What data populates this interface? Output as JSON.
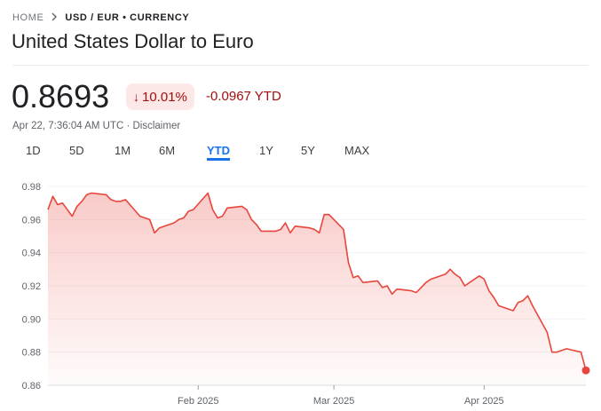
{
  "breadcrumb": {
    "home": "HOME",
    "separator_icon": "chevron-right-icon",
    "pair": "USD / EUR • CURRENCY"
  },
  "title": "United States Dollar to Euro",
  "quote": {
    "price": "0.8693",
    "change_pct": "10.01%",
    "change_arrow_icon": "arrow-down-icon",
    "change_abs": "-0.0967 YTD",
    "timestamp": "Apr 22, 7:36:04 AM UTC · Disclaimer"
  },
  "colors": {
    "negative": "#a50e0e",
    "negative_bg": "#fce8e6",
    "line": "#e8453c",
    "accent": "#1a73e8"
  },
  "tabs": [
    {
      "label": "1D",
      "active": false
    },
    {
      "label": "5D",
      "active": false
    },
    {
      "label": "1M",
      "active": false
    },
    {
      "label": "6M",
      "active": false
    },
    {
      "label": "YTD",
      "active": true
    },
    {
      "label": "1Y",
      "active": false
    },
    {
      "label": "5Y",
      "active": false
    },
    {
      "label": "MAX",
      "active": false
    }
  ],
  "chart_data": {
    "type": "area",
    "ylim": [
      0.86,
      0.98
    ],
    "yticks": [
      "0.98",
      "0.96",
      "0.94",
      "0.92",
      "0.90",
      "0.88",
      "0.86"
    ],
    "xticks": [
      {
        "label": "Feb 2025",
        "date": "2025-02-01"
      },
      {
        "label": "Mar 2025",
        "date": "2025-03-01"
      },
      {
        "label": "Apr 2025",
        "date": "2025-04-01"
      }
    ],
    "xlim": [
      "2025-01-01",
      "2025-04-22"
    ],
    "grid": true,
    "series": [
      {
        "x": [
          "2025-01-01",
          "2025-01-02",
          "2025-01-03",
          "2025-01-04",
          "2025-01-06",
          "2025-01-07",
          "2025-01-08",
          "2025-01-09",
          "2025-01-10",
          "2025-01-13",
          "2025-01-14",
          "2025-01-15",
          "2025-01-16",
          "2025-01-17",
          "2025-01-20",
          "2025-01-21",
          "2025-01-22",
          "2025-01-23",
          "2025-01-24",
          "2025-01-27",
          "2025-01-28",
          "2025-01-29",
          "2025-01-30",
          "2025-01-31",
          "2025-02-03",
          "2025-02-04",
          "2025-02-05",
          "2025-02-06",
          "2025-02-07",
          "2025-02-10",
          "2025-02-11",
          "2025-02-12",
          "2025-02-13",
          "2025-02-14",
          "2025-02-17",
          "2025-02-18",
          "2025-02-19",
          "2025-02-20",
          "2025-02-21",
          "2025-02-24",
          "2025-02-25",
          "2025-02-26",
          "2025-02-27",
          "2025-02-28",
          "2025-03-03",
          "2025-03-04",
          "2025-03-05",
          "2025-03-06",
          "2025-03-07",
          "2025-03-10",
          "2025-03-11",
          "2025-03-12",
          "2025-03-13",
          "2025-03-14",
          "2025-03-17",
          "2025-03-18",
          "2025-03-19",
          "2025-03-20",
          "2025-03-21",
          "2025-03-24",
          "2025-03-25",
          "2025-03-26",
          "2025-03-27",
          "2025-03-28",
          "2025-03-31",
          "2025-04-01",
          "2025-04-02",
          "2025-04-03",
          "2025-04-04",
          "2025-04-07",
          "2025-04-08",
          "2025-04-09",
          "2025-04-10",
          "2025-04-11",
          "2025-04-14",
          "2025-04-15",
          "2025-04-16",
          "2025-04-17",
          "2025-04-18",
          "2025-04-21",
          "2025-04-22"
        ],
        "y": [
          0.966,
          0.974,
          0.969,
          0.97,
          0.962,
          0.968,
          0.971,
          0.975,
          0.976,
          0.975,
          0.972,
          0.971,
          0.971,
          0.972,
          0.962,
          0.961,
          0.96,
          0.952,
          0.955,
          0.958,
          0.96,
          0.961,
          0.965,
          0.966,
          0.976,
          0.966,
          0.961,
          0.962,
          0.967,
          0.968,
          0.966,
          0.96,
          0.957,
          0.953,
          0.953,
          0.954,
          0.958,
          0.952,
          0.956,
          0.955,
          0.954,
          0.952,
          0.963,
          0.963,
          0.954,
          0.934,
          0.925,
          0.926,
          0.922,
          0.923,
          0.919,
          0.92,
          0.915,
          0.918,
          0.917,
          0.916,
          0.919,
          0.922,
          0.924,
          0.927,
          0.93,
          0.927,
          0.925,
          0.92,
          0.926,
          0.924,
          0.917,
          0.913,
          0.908,
          0.905,
          0.91,
          0.911,
          0.914,
          0.908,
          0.892,
          0.88,
          0.88,
          0.881,
          0.882,
          0.88,
          0.869
        ]
      }
    ]
  }
}
